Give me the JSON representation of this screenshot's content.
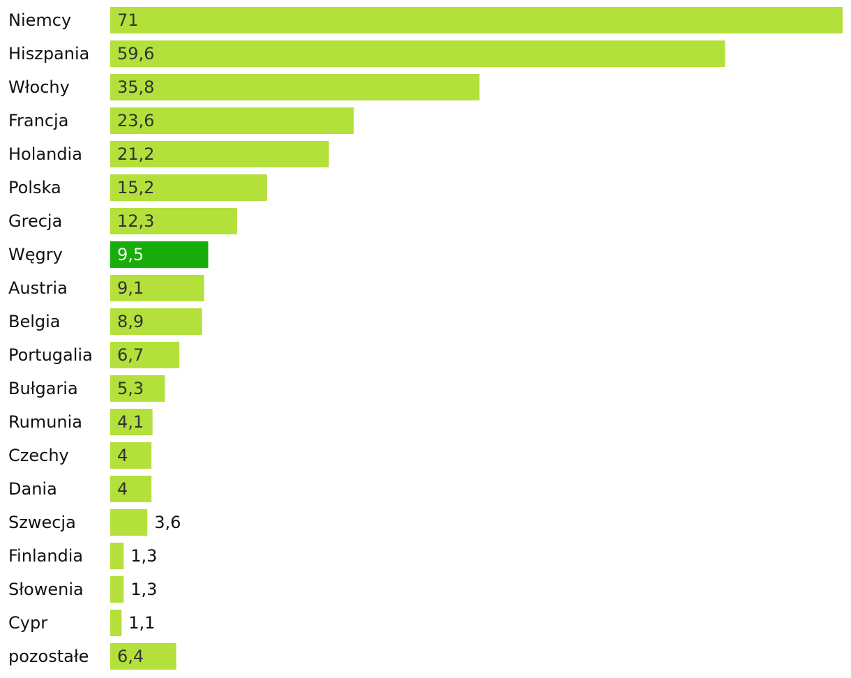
{
  "chart_data": {
    "type": "barh",
    "categories": [
      "Niemcy",
      "Hiszpania",
      "Włochy",
      "Francja",
      "Holandia",
      "Polska",
      "Grecja",
      "Węgry",
      "Austria",
      "Belgia",
      "Portugalia",
      "Bułgaria",
      "Rumunia",
      "Czechy",
      "Dania",
      "Szwecja",
      "Finlandia",
      "Słowenia",
      "Cypr",
      "pozostałe"
    ],
    "values": [
      71,
      59.6,
      35.8,
      23.6,
      21.2,
      15.2,
      12.3,
      9.5,
      9.1,
      8.9,
      6.7,
      5.3,
      4.1,
      4,
      4,
      3.6,
      1.3,
      1.3,
      1.1,
      6.4
    ],
    "value_labels": [
      "71",
      "59,6",
      "35,8",
      "23,6",
      "21,2",
      "15,2",
      "12,3",
      "9,5",
      "9,1",
      "8,9",
      "6,7",
      "5,3",
      "4,1",
      "4",
      "4",
      "3,6",
      "1,3",
      "1,3",
      "1,1",
      "6,4"
    ],
    "colors": [
      "#b3e03a",
      "#b3e03a",
      "#b3e03a",
      "#b3e03a",
      "#b3e03a",
      "#b3e03a",
      "#b3e03a",
      "#17ad0a",
      "#b3e03a",
      "#b3e03a",
      "#b3e03a",
      "#b3e03a",
      "#b3e03a",
      "#b3e03a",
      "#b3e03a",
      "#b3e03a",
      "#b3e03a",
      "#b3e03a",
      "#b3e03a",
      "#b3e03a"
    ]
  }
}
